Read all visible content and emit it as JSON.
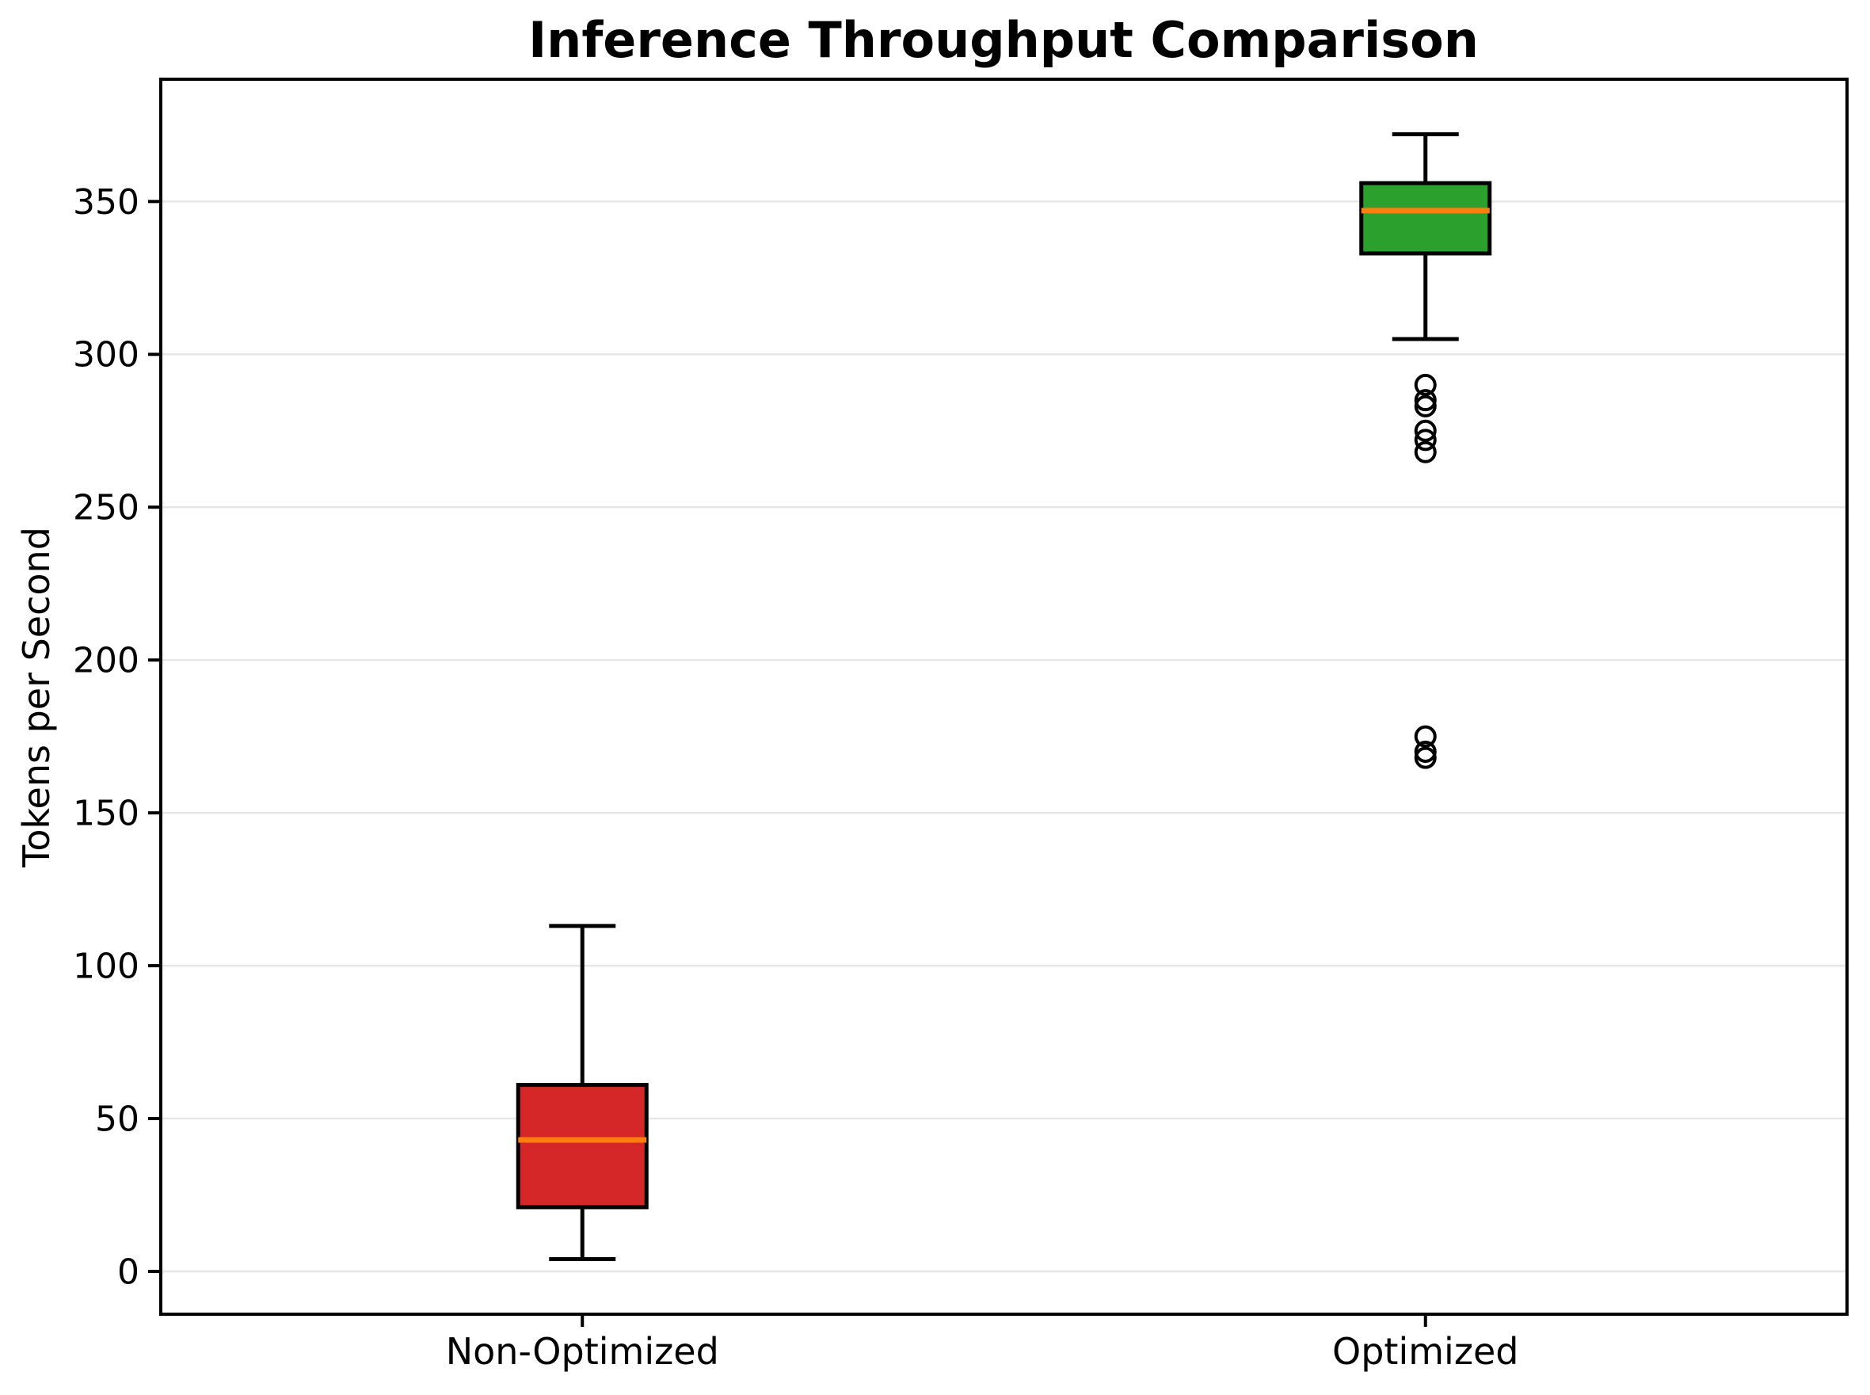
{
  "chart_data": {
    "type": "boxplot",
    "title": "Inference Throughput Comparison",
    "ylabel": "Tokens per Second",
    "xlabel": "",
    "categories": [
      "Non-Optimized",
      "Optimized"
    ],
    "yticks": [
      0,
      50,
      100,
      150,
      200,
      250,
      300,
      350
    ],
    "ylim": [
      -14,
      390
    ],
    "grid": "horizontal-only",
    "legend": "none",
    "colors": {
      "non_optimized_fill": "#d62728",
      "optimized_fill": "#2ca02c",
      "median_line": "#ff7f0e",
      "box_edge": "#000000",
      "gridline": "#e7e7e7",
      "background": "#ffffff",
      "axis": "#000000"
    },
    "series": [
      {
        "name": "Non-Optimized",
        "whisker_low": 4,
        "q1": 21,
        "median": 43,
        "q3": 61,
        "whisker_high": 113,
        "outliers": [],
        "fill_color": "#d62728"
      },
      {
        "name": "Optimized",
        "whisker_low": 305,
        "q1": 333,
        "median": 347,
        "q3": 356,
        "whisker_high": 372,
        "outliers": [
          290,
          285,
          283,
          275,
          272,
          268,
          175,
          170,
          168
        ],
        "fill_color": "#2ca02c"
      }
    ]
  }
}
